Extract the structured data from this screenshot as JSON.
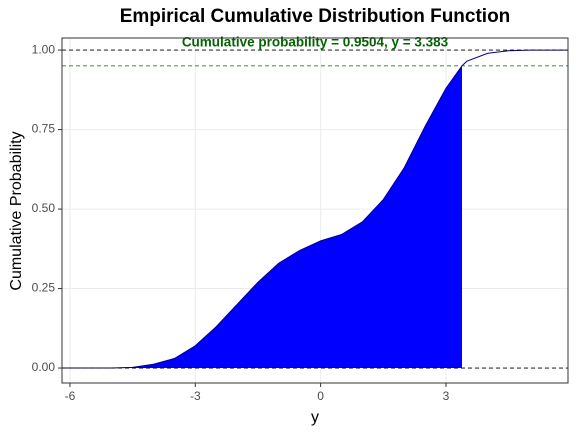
{
  "chart_data": {
    "type": "ecdf",
    "title": "Empirical Cumulative Distribution Function",
    "x_label": "y",
    "y_label": "Cumulative Probability",
    "annotation": "Cumulative probability = 0.9504, y = 3.383",
    "threshold": {
      "x": 3.383,
      "p": 0.9504
    },
    "reference_lines": [
      0,
      1
    ],
    "x": [
      -6.2,
      -6,
      -5.5,
      -5,
      -4.5,
      -4,
      -3.5,
      -3,
      -2.5,
      -2,
      -1.5,
      -1,
      -0.5,
      0,
      0.5,
      1,
      1.5,
      2,
      2.5,
      3,
      3.383,
      3.5,
      4,
      4.5,
      5,
      5.5,
      5.9
    ],
    "series": [
      {
        "color": "#00008b",
        "fill": "#0000ff",
        "values": [
          0,
          0,
          0,
          0,
          0.002,
          0.012,
          0.03,
          0.07,
          0.13,
          0.2,
          0.27,
          0.33,
          0.37,
          0.4,
          0.42,
          0.46,
          0.53,
          0.63,
          0.76,
          0.88,
          0.9504,
          0.965,
          0.99,
          0.998,
          1,
          1,
          1
        ]
      }
    ],
    "xlim": [
      -6.19,
      5.92
    ],
    "ylim": [
      -0.047,
      1.038
    ],
    "xticks": [
      -6,
      -3,
      0,
      3
    ],
    "yticks": [
      {
        "value": 0,
        "label": "0.00"
      },
      {
        "value": 0.25,
        "label": "0.25"
      },
      {
        "value": 0.5,
        "label": "0.50"
      },
      {
        "value": 0.75,
        "label": "0.75"
      },
      {
        "value": 1,
        "label": "1.00"
      }
    ],
    "grid": true
  }
}
